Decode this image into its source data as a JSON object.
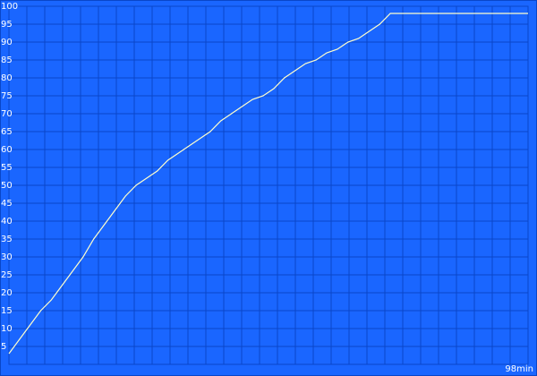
{
  "chart_data": {
    "type": "line",
    "x": [
      0,
      2,
      4,
      6,
      8,
      10,
      12,
      14,
      16,
      18,
      20,
      22,
      24,
      26,
      28,
      30,
      32,
      34,
      36,
      38,
      40,
      42,
      44,
      46,
      48,
      50,
      52,
      54,
      56,
      58,
      60,
      62,
      64,
      66,
      68,
      70,
      72,
      80,
      90,
      98
    ],
    "series": [
      {
        "color": "#ffffcc",
        "values": [
          3,
          7,
          11,
          15,
          18,
          22,
          26,
          30,
          35,
          39,
          43,
          47,
          50,
          52,
          54,
          57,
          59,
          61,
          63,
          65,
          68,
          70,
          72,
          74,
          75,
          77,
          80,
          82,
          84,
          85,
          87,
          88,
          90,
          91,
          93,
          95,
          98,
          98,
          98,
          98
        ]
      }
    ],
    "xlim": [
      0,
      98
    ],
    "xticks": [
      {
        "value": 98,
        "label": "98min"
      }
    ],
    "ylim": [
      0,
      100
    ],
    "yticks": [
      5,
      10,
      15,
      20,
      25,
      30,
      35,
      40,
      45,
      50,
      55,
      60,
      65,
      70,
      75,
      80,
      85,
      90,
      95,
      100
    ],
    "grid": true,
    "background": "#1a66ff",
    "grid_color": "#0a46c8"
  }
}
